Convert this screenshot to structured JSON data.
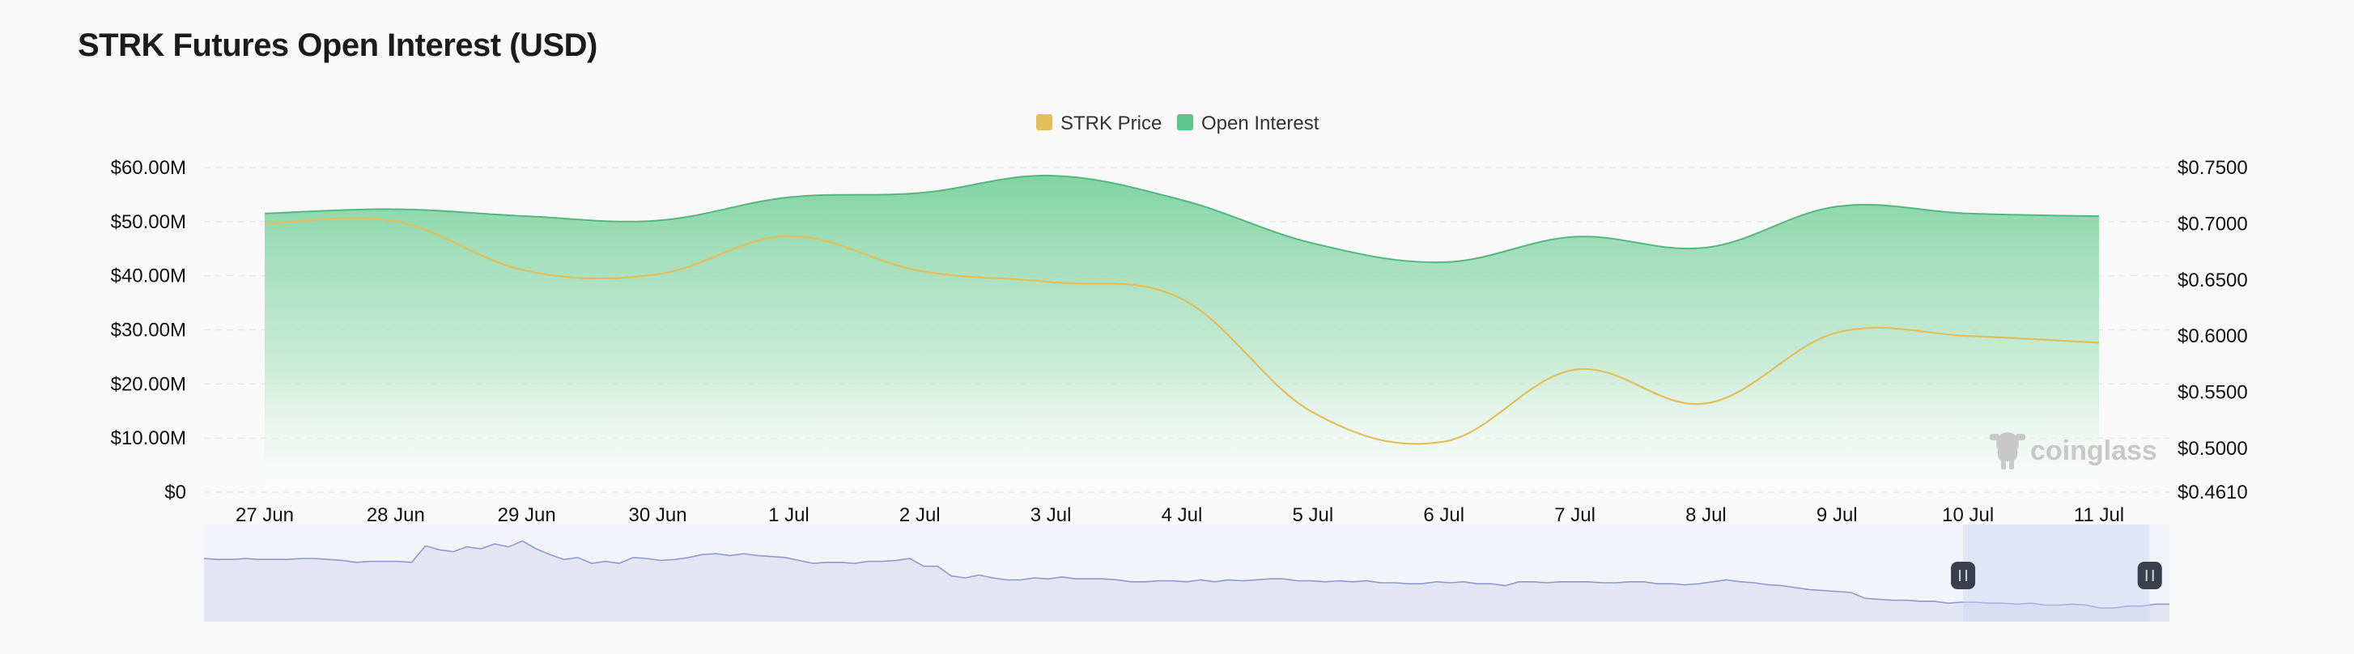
{
  "chart_data": {
    "type": "line",
    "title": "STRK Futures Open Interest (USD)",
    "x": [
      "27 Jun",
      "28 Jun",
      "29 Jun",
      "30 Jun",
      "1 Jul",
      "2 Jul",
      "3 Jul",
      "4 Jul",
      "5 Jul",
      "6 Jul",
      "7 Jul",
      "8 Jul",
      "9 Jul",
      "10 Jul",
      "11 Jul"
    ],
    "series": [
      {
        "name": "Open Interest",
        "axis": "left",
        "style": "area",
        "color": "#5cc58a",
        "values": [
          51.5,
          52.3,
          51.0,
          50.2,
          54.5,
          55.3,
          58.5,
          54.0,
          46.0,
          42.5,
          47.2,
          45.2,
          52.8,
          51.5,
          51.0
        ]
      },
      {
        "name": "STRK Price",
        "axis": "right",
        "style": "line",
        "color": "#e3be5a",
        "values": [
          0.7,
          0.702,
          0.658,
          0.655,
          0.689,
          0.658,
          0.648,
          0.633,
          0.532,
          0.506,
          0.57,
          0.54,
          0.603,
          0.6,
          0.594
        ]
      }
    ],
    "y_left": {
      "ticks": [
        0,
        10,
        20,
        30,
        40,
        50,
        60
      ],
      "tick_labels": [
        "$0",
        "$10.00M",
        "$20.00M",
        "$30.00M",
        "$40.00M",
        "$50.00M",
        "$60.00M"
      ],
      "range": [
        0,
        60
      ]
    },
    "y_right": {
      "ticks": [
        0.461,
        0.5,
        0.55,
        0.6,
        0.65,
        0.7,
        0.75
      ],
      "tick_labels": [
        "$0.4610",
        "$0.5000",
        "$0.5500",
        "$0.6000",
        "$0.6500",
        "$0.7000",
        "$0.7500"
      ],
      "range": [
        0.461,
        0.75
      ]
    },
    "grid": true,
    "legend": {
      "position": "top-center"
    },
    "navigator": {
      "values": [
        0.65,
        0.64,
        0.64,
        0.65,
        0.64,
        0.64,
        0.64,
        0.65,
        0.65,
        0.64,
        0.63,
        0.61,
        0.62,
        0.62,
        0.62,
        0.61,
        0.78,
        0.74,
        0.72,
        0.77,
        0.75,
        0.8,
        0.77,
        0.83,
        0.75,
        0.69,
        0.64,
        0.66,
        0.6,
        0.62,
        0.6,
        0.66,
        0.65,
        0.63,
        0.64,
        0.66,
        0.69,
        0.7,
        0.68,
        0.7,
        0.68,
        0.67,
        0.66,
        0.63,
        0.6,
        0.61,
        0.61,
        0.6,
        0.62,
        0.62,
        0.63,
        0.65,
        0.57,
        0.57,
        0.47,
        0.45,
        0.48,
        0.45,
        0.43,
        0.43,
        0.45,
        0.44,
        0.46,
        0.44,
        0.44,
        0.44,
        0.43,
        0.41,
        0.41,
        0.42,
        0.42,
        0.41,
        0.43,
        0.41,
        0.43,
        0.42,
        0.43,
        0.44,
        0.44,
        0.42,
        0.42,
        0.41,
        0.42,
        0.41,
        0.42,
        0.4,
        0.4,
        0.39,
        0.39,
        0.41,
        0.4,
        0.41,
        0.39,
        0.39,
        0.37,
        0.41,
        0.41,
        0.4,
        0.41,
        0.41,
        0.41,
        0.4,
        0.4,
        0.41,
        0.41,
        0.39,
        0.39,
        0.38,
        0.39,
        0.41,
        0.43,
        0.41,
        0.4,
        0.38,
        0.37,
        0.35,
        0.33,
        0.32,
        0.31,
        0.3,
        0.24,
        0.23,
        0.22,
        0.22,
        0.21,
        0.21,
        0.19,
        0.2,
        0.2,
        0.19,
        0.19,
        0.18,
        0.19,
        0.17,
        0.17,
        0.18,
        0.17,
        0.14,
        0.14,
        0.16,
        0.16,
        0.18,
        0.18
      ],
      "selection": [
        0.895,
        0.99
      ]
    },
    "watermark": "coinglass"
  }
}
